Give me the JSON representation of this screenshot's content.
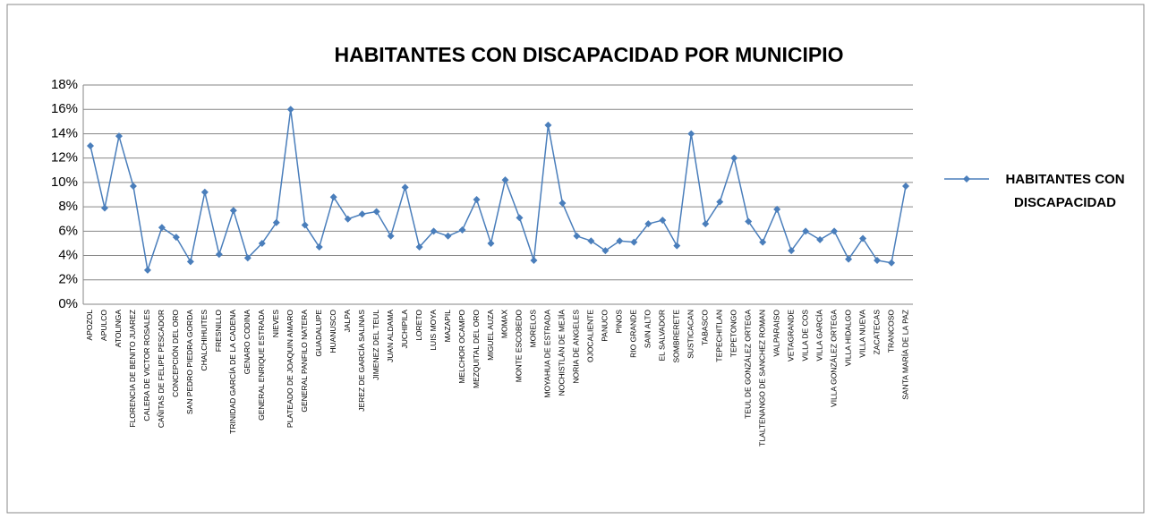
{
  "chart_data": {
    "type": "line",
    "title": "HABITANTES CON DISCAPACIDAD POR MUNICIPIO",
    "categories": [
      "APOZOL",
      "APULCO",
      "ATOLINGA",
      "FLORENCIA DE BENITO JUAREZ",
      "CALERA DE VICTOR ROSALES",
      "CAÑITAS DE FELIPE PESCADOR",
      "CONCEPCIÓN DEL ORO",
      "SAN PEDRO PIEDRA GORDA",
      "CHALCHIHUITES",
      "FRESNILLO",
      "TRINIDAD GARCÍA DE LA CADENA",
      "GENARO CODINA",
      "GENERAL ENRIQUE ESTRADA",
      "NIEVES",
      "PLATEADO DE JOAQUIN AMARO",
      "GENERAL PANFILO NATERA",
      "GUADALUPE",
      "HUANUSCO",
      "JALPA",
      "JEREZ DE GARCÍA SALINAS",
      "JIMENEZ DEL TEUL",
      "JUAN ALDAMA",
      "JUCHIPILA",
      "LORETO",
      "LUIS MOYA",
      "MAZAPIL",
      "MELCHOR OCAMPO",
      "MEZQUITAL DEL ORO",
      "MIGUEL AUZA",
      "MOMAX",
      "MONTE ESCOBEDO",
      "MORELOS",
      "MOYAHUA DE ESTRADA",
      "NOCHISTLÁN DE MEJÍA",
      "NORIA DE ANGELES",
      "OJOCALIENTE",
      "PANUCO",
      "PINOS",
      "RIO GRANDE",
      "SAIN ALTO",
      "EL SALVADOR",
      "SOMBRERETE",
      "SUSTICACAN",
      "TABASCO",
      "TEPECHITLAN",
      "TEPETONGO",
      "TEUL DE GONZÁLEZ ORTEGA",
      "TLALTENANGO DE SANCHEZ ROMAN",
      "VALPARAISO",
      "VETAGRANDE",
      "VILLA DE COS",
      "VILLA GARCÍA",
      "VILLA GONZÁLEZ ORTEGA",
      "VILLA HIDALGO",
      "VILLA NUEVA",
      "ZACATECAS",
      "TRANCOSO",
      "SANTA MARÍA DE LA PAZ"
    ],
    "series": [
      {
        "name": "HABITANTES CON DISCAPACIDAD",
        "color": "#4a7ebb",
        "values": [
          13.0,
          7.9,
          13.8,
          9.7,
          2.8,
          6.3,
          5.5,
          3.5,
          9.2,
          4.1,
          7.7,
          3.8,
          5.0,
          6.7,
          16.0,
          6.5,
          4.7,
          8.8,
          7.0,
          7.4,
          7.6,
          5.6,
          9.6,
          4.7,
          6.0,
          5.6,
          6.1,
          8.6,
          5.0,
          10.2,
          7.1,
          3.6,
          14.7,
          8.3,
          5.6,
          5.2,
          4.4,
          5.2,
          5.1,
          6.6,
          6.9,
          4.8,
          14.0,
          6.6,
          8.4,
          12.0,
          6.8,
          5.1,
          7.8,
          4.4,
          6.0,
          5.3,
          6.0,
          3.7,
          5.4,
          3.6,
          3.4,
          9.7
        ]
      }
    ],
    "ylim": [
      0,
      18
    ],
    "yticks": [
      {
        "value": 0,
        "label": "0%"
      },
      {
        "value": 2,
        "label": "2%"
      },
      {
        "value": 4,
        "label": "4%"
      },
      {
        "value": 6,
        "label": "6%"
      },
      {
        "value": 8,
        "label": "8%"
      },
      {
        "value": 10,
        "label": "10%"
      },
      {
        "value": 12,
        "label": "12%"
      },
      {
        "value": 14,
        "label": "14%"
      },
      {
        "value": 16,
        "label": "16%"
      },
      {
        "value": 18,
        "label": "18%"
      }
    ],
    "grid": true,
    "legend": "right"
  }
}
